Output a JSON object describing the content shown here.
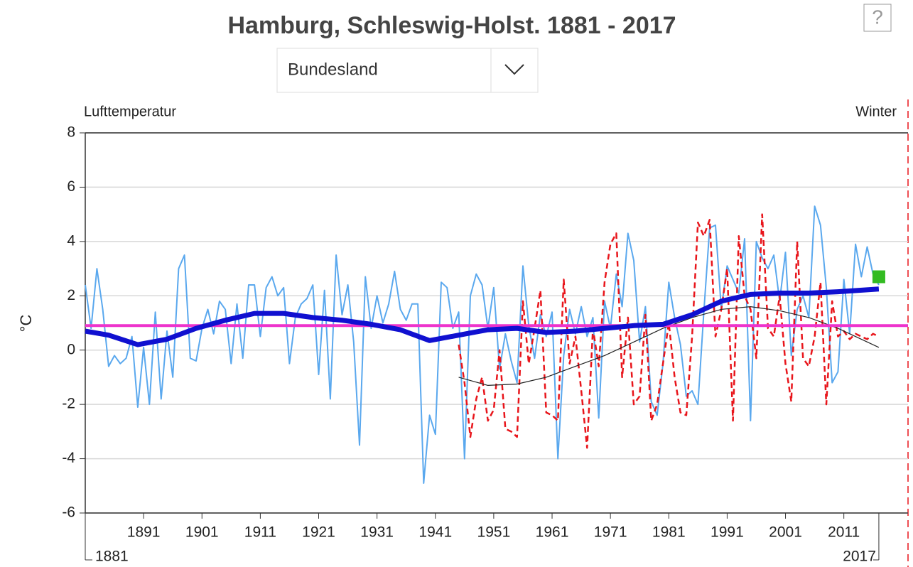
{
  "help": "?",
  "dropdown": "Bundesland",
  "variable": "Lufttemperatur",
  "season": "Winter",
  "chart_data": {
    "type": "line",
    "title": "Hamburg, Schleswig-Holst. 1881 - 2017",
    "ylabel": "°C",
    "xlim": [
      1881,
      2022
    ],
    "xticks": [
      1891,
      1901,
      1911,
      1921,
      1931,
      1941,
      1951,
      1961,
      1971,
      1981,
      1991,
      2001,
      2011
    ],
    "range_labels": [
      1881,
      2017
    ],
    "ylim": [
      -6,
      8
    ],
    "yticks": [
      -6,
      -4,
      -2,
      0,
      2,
      4,
      6,
      8
    ],
    "grid": true,
    "series": [
      {
        "color": "#5aa8ee",
        "width": 2,
        "x": [
          1881,
          1882,
          1883,
          1884,
          1885,
          1886,
          1887,
          1888,
          1889,
          1890,
          1891,
          1892,
          1893,
          1894,
          1895,
          1896,
          1897,
          1898,
          1899,
          1900,
          1901,
          1902,
          1903,
          1904,
          1905,
          1906,
          1907,
          1908,
          1909,
          1910,
          1911,
          1912,
          1913,
          1914,
          1915,
          1916,
          1917,
          1918,
          1919,
          1920,
          1921,
          1922,
          1923,
          1924,
          1925,
          1926,
          1927,
          1928,
          1929,
          1930,
          1931,
          1932,
          1933,
          1934,
          1935,
          1936,
          1937,
          1938,
          1939,
          1940,
          1941,
          1942,
          1943,
          1944,
          1945,
          1946,
          1947,
          1948,
          1949,
          1950,
          1951,
          1952,
          1953,
          1954,
          1955,
          1956,
          1957,
          1958,
          1959,
          1960,
          1961,
          1962,
          1963,
          1964,
          1965,
          1966,
          1967,
          1968,
          1969,
          1970,
          1971,
          1972,
          1973,
          1974,
          1975,
          1976,
          1977,
          1978,
          1979,
          1980,
          1981,
          1982,
          1983,
          1984,
          1985,
          1986,
          1987,
          1988,
          1989,
          1990,
          1991,
          1992,
          1993,
          1994,
          1995,
          1996,
          1997,
          1998,
          1999,
          2000,
          2001,
          2002,
          2003,
          2004,
          2005,
          2006,
          2007,
          2008,
          2009,
          2010,
          2011,
          2012,
          2013,
          2014,
          2015,
          2016,
          2017
        ],
        "values": [
          2.4,
          0.8,
          3.0,
          1.5,
          -0.6,
          -0.2,
          -0.5,
          -0.3,
          0.5,
          -2.1,
          0.1,
          -2.0,
          1.4,
          -1.8,
          0.7,
          -1.0,
          3.0,
          3.5,
          -0.3,
          -0.4,
          0.8,
          1.5,
          0.6,
          1.8,
          1.5,
          -0.5,
          1.7,
          -0.3,
          2.4,
          2.4,
          0.5,
          2.3,
          2.7,
          2.0,
          2.3,
          -0.5,
          1.2,
          1.7,
          1.9,
          2.4,
          -0.9,
          2.2,
          -1.8,
          3.5,
          1.3,
          2.4,
          0.3,
          -3.5,
          2.7,
          0.8,
          2.0,
          1.0,
          1.7,
          2.9,
          1.5,
          1.1,
          1.7,
          1.7,
          -4.9,
          -2.4,
          -3.1,
          2.5,
          2.3,
          0.8,
          1.4,
          -4.0,
          2.0,
          2.8,
          2.4,
          0.8,
          2.3,
          -0.7,
          0.6,
          -0.4,
          -1.2,
          3.1,
          0.9,
          -0.3,
          1.3,
          0.5,
          1.4,
          -4.0,
          -0.2,
          1.5,
          0.6,
          1.6,
          0.5,
          1.2,
          -2.5,
          1.8,
          0.8,
          2.8,
          1.6,
          4.3,
          3.3,
          0.3,
          1.6,
          -1.9,
          -2.4,
          -0.5,
          2.5,
          1.2,
          0.2,
          -1.7,
          -1.5,
          -2.0,
          1.4,
          4.5,
          4.6,
          1.5,
          3.1,
          2.6,
          2.1,
          4.1,
          -2.6,
          4.0,
          3.4,
          3.0,
          3.5,
          1.8,
          3.6,
          -0.2,
          1.5,
          2.0,
          1.2,
          5.3,
          4.6,
          2.3,
          -1.2,
          -0.8,
          2.6,
          0.6,
          3.9,
          2.7,
          3.8,
          2.8,
          2.4
        ]
      },
      {
        "color": "#e8151b",
        "width": 2.5,
        "dashed": true,
        "x": [
          1945,
          1946,
          1947,
          1948,
          1949,
          1950,
          1951,
          1952,
          1953,
          1954,
          1955,
          1956,
          1957,
          1958,
          1959,
          1960,
          1961,
          1962,
          1963,
          1964,
          1965,
          1966,
          1967,
          1968,
          1969,
          1970,
          1971,
          1972,
          1973,
          1974,
          1975,
          1976,
          1977,
          1978,
          1979,
          1980,
          1981,
          1982,
          1983,
          1984,
          1985,
          1986,
          1987,
          1988,
          1989,
          1990,
          1991,
          1992,
          1993,
          1994,
          1995,
          1996,
          1997,
          1998,
          1999,
          2000,
          2001,
          2002,
          2003,
          2004,
          2005,
          2006,
          2007,
          2008,
          2009,
          2010,
          2011,
          2012,
          2013,
          2014,
          2015,
          2016,
          2017
        ],
        "values": [
          0.2,
          -1.2,
          -3.2,
          -1.8,
          -1.0,
          -2.6,
          -2.2,
          0.0,
          -2.9,
          -3.0,
          -3.2,
          1.8,
          -0.5,
          0.8,
          2.2,
          -2.3,
          -2.4,
          -2.6,
          2.6,
          -0.5,
          0.5,
          -1.5,
          -3.6,
          0.8,
          -0.6,
          2.5,
          3.9,
          4.3,
          -1.0,
          1.2,
          -2.0,
          -1.7,
          1.3,
          -2.6,
          -2.0,
          -0.5,
          1.0,
          -1.0,
          -2.3,
          -2.4,
          0.5,
          4.7,
          4.2,
          4.8,
          0.5,
          1.5,
          3.0,
          -2.6,
          4.2,
          2.0,
          1.5,
          -0.3,
          5.0,
          0.8,
          0.5,
          2.0,
          -0.5,
          -1.9,
          4.0,
          -0.3,
          -0.6,
          0.5,
          2.5,
          -2.0,
          1.8,
          0.5,
          0.7,
          0.4,
          0.6,
          0.5,
          0.4,
          0.6,
          0.5
        ]
      },
      {
        "color": "#222222",
        "width": 1.2,
        "x": [
          1945,
          1950,
          1955,
          1960,
          1965,
          1970,
          1975,
          1980,
          1985,
          1990,
          1995,
          2000,
          2005,
          2010,
          2017
        ],
        "values": [
          -1.0,
          -1.3,
          -1.25,
          -1.0,
          -0.6,
          -0.2,
          0.3,
          0.8,
          1.2,
          1.5,
          1.6,
          1.45,
          1.2,
          0.8,
          0.1
        ]
      },
      {
        "color": "#ee33cc",
        "width": 4,
        "x": [
          1881,
          2022
        ],
        "values": [
          0.9,
          0.9
        ]
      },
      {
        "color": "#1010d0",
        "width": 7,
        "x": [
          1881,
          1885,
          1890,
          1895,
          1900,
          1905,
          1910,
          1915,
          1920,
          1925,
          1930,
          1935,
          1940,
          1945,
          1950,
          1955,
          1960,
          1965,
          1970,
          1975,
          1980,
          1985,
          1990,
          1995,
          2000,
          2005,
          2010,
          2017
        ],
        "values": [
          0.7,
          0.55,
          0.2,
          0.4,
          0.8,
          1.1,
          1.35,
          1.35,
          1.2,
          1.1,
          0.95,
          0.75,
          0.35,
          0.55,
          0.75,
          0.8,
          0.65,
          0.7,
          0.8,
          0.9,
          0.95,
          1.3,
          1.8,
          2.05,
          2.1,
          2.1,
          2.15,
          2.25
        ]
      },
      {
        "color": "#33bb22",
        "marker": "square",
        "x": [
          2017
        ],
        "values": [
          2.7
        ]
      }
    ]
  }
}
